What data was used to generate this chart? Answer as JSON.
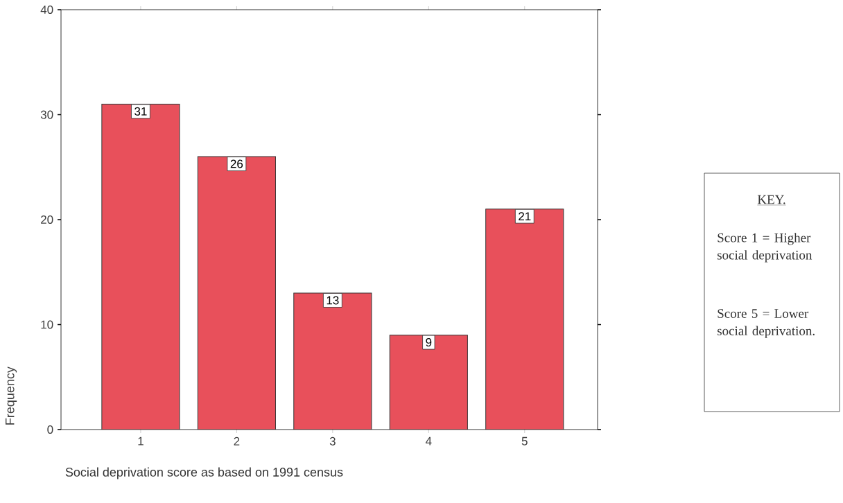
{
  "chart_data": {
    "type": "bar",
    "xlabel": "Social deprivation score as based on 1991 census",
    "ylabel": "Frequency",
    "categories": [
      "1",
      "2",
      "3",
      "4",
      "5"
    ],
    "values": [
      31,
      26,
      13,
      9,
      21
    ],
    "color": "#e8505b",
    "ylim": [
      0,
      40
    ],
    "yticks": [
      0,
      10,
      20,
      30,
      40
    ],
    "data_labels": true,
    "annotations": [
      "KEY.",
      "Score 1 = Higher social deprivation",
      "Score 5 = Lower social deprivation."
    ]
  }
}
